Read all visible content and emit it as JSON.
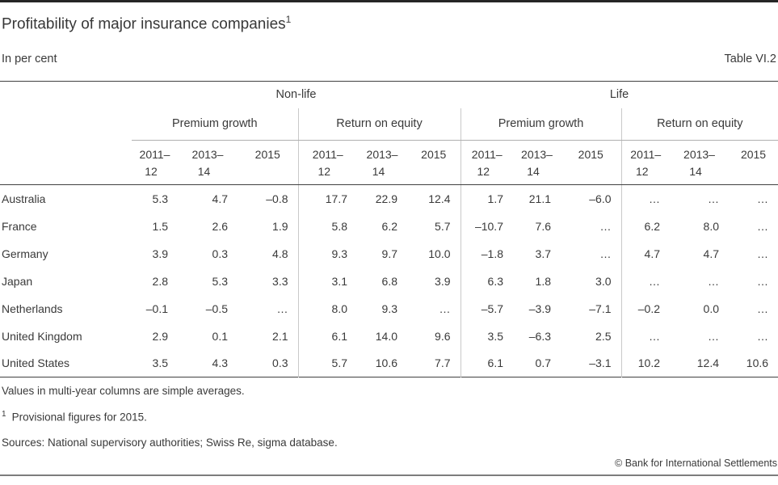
{
  "header": {
    "title": "Profitability of major insurance companies",
    "title_footnote_marker": "1",
    "subtitle": "In per cent",
    "table_label": "Table VI.2"
  },
  "table": {
    "groups": [
      {
        "label": "Non-life"
      },
      {
        "label": "Life"
      }
    ],
    "subgroups": [
      {
        "label": "Premium growth"
      },
      {
        "label": "Return on equity"
      },
      {
        "label": "Premium growth"
      },
      {
        "label": "Return on equity"
      }
    ],
    "year_cols": [
      {
        "line1": "2011–",
        "line2": "12"
      },
      {
        "line1": "2013–",
        "line2": "14"
      },
      {
        "line1": "2015",
        "line2": ""
      }
    ],
    "rows": [
      {
        "country": "Australia",
        "values": [
          "5.3",
          "4.7",
          "–0.8",
          "17.7",
          "22.9",
          "12.4",
          "1.7",
          "21.1",
          "–6.0",
          "…",
          "…",
          "…"
        ]
      },
      {
        "country": "France",
        "values": [
          "1.5",
          "2.6",
          "1.9",
          "5.8",
          "6.2",
          "5.7",
          "–10.7",
          "7.6",
          "…",
          "6.2",
          "8.0",
          "…"
        ]
      },
      {
        "country": "Germany",
        "values": [
          "3.9",
          "0.3",
          "4.8",
          "9.3",
          "9.7",
          "10.0",
          "–1.8",
          "3.7",
          "…",
          "4.7",
          "4.7",
          "…"
        ]
      },
      {
        "country": "Japan",
        "values": [
          "2.8",
          "5.3",
          "3.3",
          "3.1",
          "6.8",
          "3.9",
          "6.3",
          "1.8",
          "3.0",
          "…",
          "…",
          "…"
        ]
      },
      {
        "country": "Netherlands",
        "values": [
          "–0.1",
          "–0.5",
          "…",
          "8.0",
          "9.3",
          "…",
          "–5.7",
          "–3.9",
          "–7.1",
          "–0.2",
          "0.0",
          "…"
        ]
      },
      {
        "country": "United Kingdom",
        "values": [
          "2.9",
          "0.1",
          "2.1",
          "6.1",
          "14.0",
          "9.6",
          "3.5",
          "–6.3",
          "2.5",
          "…",
          "…",
          "…"
        ]
      },
      {
        "country": "United States",
        "values": [
          "3.5",
          "4.3",
          "0.3",
          "5.7",
          "10.6",
          "7.7",
          "6.1",
          "0.7",
          "–3.1",
          "10.2",
          "12.4",
          "10.6"
        ]
      }
    ]
  },
  "notes": {
    "averages_note": "Values in multi-year columns are simple averages.",
    "footnote_marker": "1",
    "footnote_text": "Provisional figures for 2015.",
    "sources": "Sources: National supervisory authorities; Swiss Re, sigma database."
  },
  "footer": {
    "copyright": "© Bank for International Settlements"
  },
  "colors": {
    "text": "#3a3a3a",
    "top_bar": "#262626",
    "heavy_rule": "#404040",
    "light_divider": "#c9c9c9",
    "subheader_rule": "#b0b0b0",
    "bottom_rule": "#7d7d7d"
  }
}
